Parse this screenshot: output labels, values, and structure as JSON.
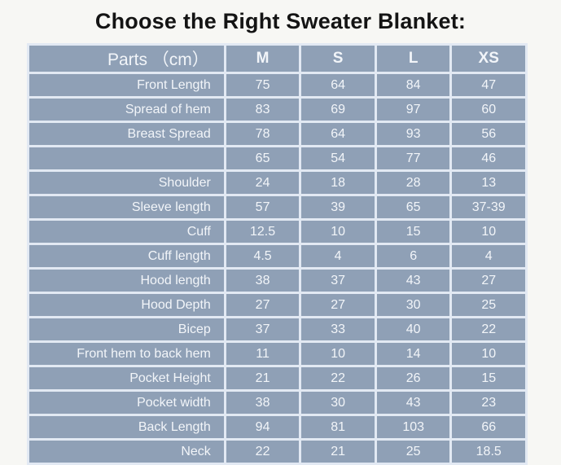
{
  "title": "Choose the Right Sweater Blanket:",
  "colors": {
    "page_background": "#f7f7f4",
    "cell_background": "#8fa0b6",
    "separator_lines": "#e2e9f3",
    "cell_text": "#f2f5f9",
    "title_text": "#141414"
  },
  "chart_data": {
    "type": "table",
    "title": "Choose the Right Sweater Blanket:",
    "unit": "cm",
    "columns": [
      "Parts （cm）",
      "M",
      "S",
      "L",
      "XS"
    ],
    "rows": [
      [
        "Front Length",
        "75",
        "64",
        "84",
        "47"
      ],
      [
        "Spread of hem",
        "83",
        "69",
        "97",
        "60"
      ],
      [
        "Breast Spread",
        "78",
        "64",
        "93",
        "56"
      ],
      [
        "",
        "65",
        "54",
        "77",
        "46"
      ],
      [
        "Shoulder",
        "24",
        "18",
        "28",
        "13"
      ],
      [
        "Sleeve length",
        "57",
        "39",
        "65",
        "37-39"
      ],
      [
        "Cuff",
        "12.5",
        "10",
        "15",
        "10"
      ],
      [
        "Cuff length",
        "4.5",
        "4",
        "6",
        "4"
      ],
      [
        "Hood length",
        "38",
        "37",
        "43",
        "27"
      ],
      [
        "Hood Depth",
        "27",
        "27",
        "30",
        "25"
      ],
      [
        "Bicep",
        "37",
        "33",
        "40",
        "22"
      ],
      [
        "Front hem to back hem",
        "11",
        "10",
        "14",
        "10"
      ],
      [
        "Pocket Height",
        "21",
        "22",
        "26",
        "15"
      ],
      [
        "Pocket width",
        "38",
        "30",
        "43",
        "23"
      ],
      [
        "Back Length",
        "94",
        "81",
        "103",
        "66"
      ],
      [
        "Neck",
        "22",
        "21",
        "25",
        "18.5"
      ]
    ]
  }
}
